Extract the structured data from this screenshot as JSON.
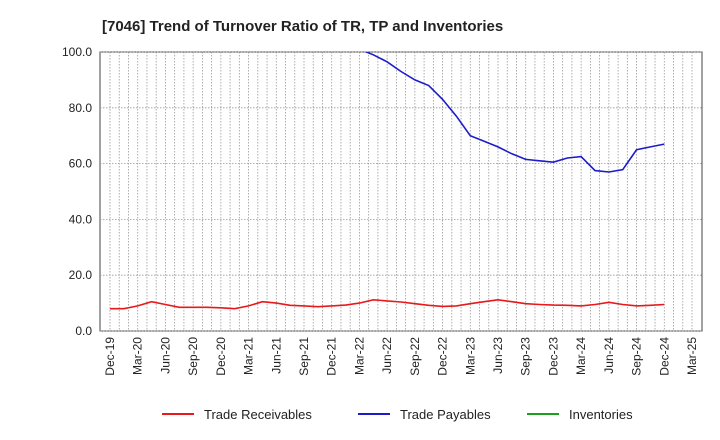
{
  "chart_data": {
    "type": "line",
    "title": "[7046]  Trend of Turnover Ratio of TR, TP and Inventories",
    "xlabel": "",
    "ylabel": "",
    "ylim": [
      0,
      100
    ],
    "yticks": [
      "0.0",
      "20.0",
      "40.0",
      "60.0",
      "80.0",
      "100.0"
    ],
    "x_tick_labels": [
      "Dec-19",
      "Mar-20",
      "Jun-20",
      "Sep-20",
      "Dec-20",
      "Mar-21",
      "Jun-21",
      "Sep-21",
      "Dec-21",
      "Mar-22",
      "Jun-22",
      "Sep-22",
      "Dec-22",
      "Mar-23",
      "Jun-23",
      "Sep-23",
      "Dec-23",
      "Mar-24",
      "Jun-24",
      "Sep-24",
      "Dec-24",
      "Mar-25"
    ],
    "grid": true,
    "legend_position": "bottom",
    "series": [
      {
        "name": "Trade Receivables",
        "color": "#e8191b",
        "values": [
          8.0,
          8.0,
          9.0,
          10.5,
          9.5,
          8.5,
          8.5,
          8.5,
          8.3,
          8.0,
          9.0,
          10.5,
          10.0,
          9.2,
          9.0,
          8.7,
          9.0,
          9.3,
          10.0,
          11.2,
          10.8,
          10.4,
          9.8,
          9.2,
          8.8,
          9.0,
          9.8,
          10.5,
          11.2,
          10.5,
          9.8,
          9.5,
          9.3,
          9.2,
          9.0,
          9.5,
          10.3,
          9.5,
          9.0,
          9.2,
          9.5
        ]
      },
      {
        "name": "Trade Payables",
        "color": "#1c1ccc",
        "values": [
          null,
          null,
          null,
          null,
          null,
          null,
          null,
          null,
          null,
          null,
          null,
          null,
          null,
          null,
          null,
          null,
          null,
          null,
          101.0,
          99.0,
          96.5,
          93.0,
          90.0,
          88.0,
          83.0,
          77.0,
          70.0,
          68.0,
          66.0,
          63.5,
          61.5,
          61.0,
          60.5,
          62.0,
          62.5,
          57.5,
          57.0,
          57.8,
          65.0,
          66.0,
          67.0
        ]
      },
      {
        "name": "Inventories",
        "color": "#1e9e1e",
        "values": []
      }
    ]
  }
}
